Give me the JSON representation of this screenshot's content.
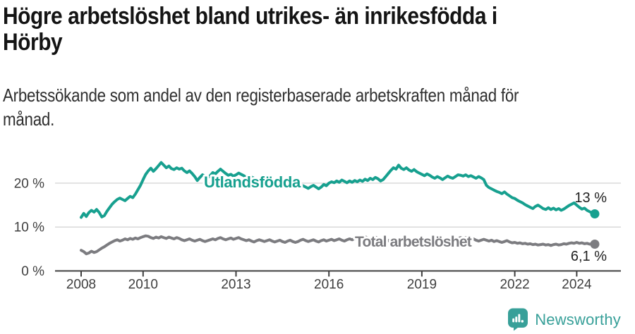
{
  "header": {
    "title": "Högre arbetslöshet bland utrikes- än inrikesfödda i\nHörby",
    "subtitle": "Arbetssökande som andel av den registerbaserade arbetskraften månad för\nmånad."
  },
  "colors": {
    "accent_teal": "#17a08f",
    "line_gray": "#7c7c80",
    "grid": "#d9d9d9",
    "axis": "#3f3f3f",
    "annotation_text": "#1f1f1f",
    "brand_teal": "#38a099"
  },
  "chart_data": {
    "type": "line",
    "x_start": "2008-01",
    "x_end": "2024-08",
    "frequency": "monthly",
    "start_year": 2008,
    "x_tick_years": [
      2008,
      2010,
      2013,
      2016,
      2019,
      2022,
      2024
    ],
    "y_ticks": [
      {
        "value": 0,
        "label": "0 %"
      },
      {
        "value": 10,
        "label": "10 %"
      },
      {
        "value": 20,
        "label": "20 %"
      }
    ],
    "ylim": [
      0,
      26
    ],
    "grid": "horizontal",
    "legend_position": "inline-labels",
    "series": [
      {
        "name": "Utlandsfödda",
        "color": "#17a08f",
        "end_label": "13 %",
        "end_value": 13.0,
        "values": [
          12.2,
          13.1,
          12.4,
          13.3,
          13.8,
          13.4,
          14.0,
          13.3,
          12.3,
          12.6,
          13.6,
          14.4,
          15.2,
          15.8,
          16.3,
          16.6,
          16.3,
          16.0,
          16.5,
          17.0,
          16.7,
          17.5,
          18.5,
          19.5,
          20.8,
          22.0,
          22.8,
          23.4,
          22.7,
          23.3,
          24.0,
          24.7,
          24.1,
          23.5,
          23.9,
          23.3,
          23.1,
          23.5,
          23.2,
          23.4,
          22.8,
          22.4,
          22.8,
          22.2,
          21.5,
          20.6,
          21.3,
          21.9,
          21.6,
          21.2,
          21.7,
          22.4,
          22.1,
          22.7,
          23.2,
          22.7,
          22.2,
          21.8,
          22.0,
          21.6,
          21.9,
          22.3,
          22.0,
          21.7,
          21.3,
          21.0,
          21.4,
          21.1,
          20.7,
          20.4,
          20.8,
          20.5,
          20.2,
          20.6,
          20.3,
          19.9,
          19.6,
          20.0,
          19.7,
          19.4,
          19.8,
          19.5,
          19.2,
          19.6,
          19.3,
          19.0,
          19.4,
          19.1,
          18.8,
          19.2,
          19.5,
          19.1,
          18.7,
          19.1,
          19.7,
          19.4,
          20.0,
          20.3,
          20.1,
          20.5,
          20.2,
          20.7,
          20.4,
          20.1,
          20.5,
          20.2,
          20.6,
          20.3,
          20.7,
          20.4,
          20.9,
          20.6,
          21.1,
          20.8,
          21.3,
          21.0,
          20.5,
          20.8,
          21.5,
          22.2,
          22.9,
          23.5,
          23.2,
          24.1,
          23.4,
          23.1,
          23.5,
          23.0,
          22.7,
          23.1,
          22.6,
          22.3,
          22.0,
          21.7,
          22.1,
          21.8,
          21.4,
          21.1,
          21.5,
          21.2,
          20.8,
          21.2,
          21.6,
          21.3,
          21.1,
          21.5,
          21.9,
          21.8,
          21.6,
          21.9,
          21.5,
          21.7,
          21.4,
          21.1,
          21.5,
          21.2,
          20.8,
          19.5,
          19.0,
          18.7,
          18.4,
          18.1,
          17.9,
          17.6,
          18.0,
          17.5,
          17.1,
          16.7,
          16.5,
          16.1,
          15.8,
          15.5,
          15.1,
          14.8,
          14.5,
          14.2,
          14.7,
          15.0,
          14.6,
          14.2,
          14.0,
          14.4,
          14.0,
          14.3,
          13.9,
          14.2,
          13.8,
          14.1,
          14.5,
          14.9,
          15.2,
          15.5,
          15.0,
          14.5,
          14.1,
          14.3,
          13.8,
          13.5,
          13.2,
          13.0
        ]
      },
      {
        "name": "Total arbetslöshet",
        "color": "#7c7c80",
        "end_label": "6,1 %",
        "end_value": 6.1,
        "values": [
          4.7,
          4.4,
          3.9,
          4.1,
          4.5,
          4.2,
          4.4,
          4.8,
          5.2,
          5.5,
          5.9,
          6.3,
          6.6,
          6.9,
          7.1,
          6.8,
          7.0,
          7.3,
          7.1,
          7.4,
          7.2,
          7.5,
          7.3,
          7.6,
          7.8,
          8.0,
          7.9,
          7.6,
          7.4,
          7.7,
          7.5,
          7.8,
          7.6,
          7.4,
          7.7,
          7.5,
          7.3,
          7.6,
          7.4,
          7.1,
          6.9,
          7.1,
          7.3,
          7.0,
          6.8,
          7.0,
          7.2,
          6.9,
          6.7,
          6.9,
          7.1,
          7.3,
          7.1,
          7.4,
          7.6,
          7.3,
          7.1,
          7.3,
          7.5,
          7.2,
          7.4,
          7.6,
          7.3,
          7.1,
          6.9,
          7.1,
          6.8,
          6.6,
          6.9,
          7.1,
          6.9,
          6.7,
          6.9,
          7.1,
          6.8,
          6.6,
          6.8,
          7.0,
          6.7,
          6.5,
          6.8,
          7.0,
          6.7,
          6.5,
          6.7,
          7.0,
          7.2,
          6.9,
          6.7,
          6.9,
          7.1,
          6.8,
          6.6,
          6.9,
          7.1,
          6.8,
          7.0,
          7.2,
          6.9,
          7.1,
          7.3,
          7.0,
          6.8,
          7.1,
          7.3,
          7.1,
          7.4,
          7.2,
          7.4,
          7.6,
          7.8,
          7.5,
          7.3,
          7.5,
          7.7,
          7.4,
          7.2,
          7.4,
          7.1,
          6.9,
          7.1,
          7.3,
          7.0,
          6.8,
          7.0,
          7.2,
          6.9,
          6.7,
          6.9,
          7.1,
          6.8,
          6.6,
          6.8,
          7.0,
          7.2,
          6.9,
          6.7,
          6.9,
          7.1,
          6.8,
          7.0,
          7.2,
          6.9,
          6.7,
          6.9,
          7.1,
          7.4,
          7.6,
          7.4,
          7.6,
          7.3,
          7.1,
          7.3,
          7.0,
          6.8,
          7.0,
          7.2,
          7.0,
          6.8,
          7.0,
          6.7,
          6.9,
          6.7,
          6.5,
          6.7,
          6.9,
          6.6,
          6.4,
          6.5,
          6.3,
          6.4,
          6.2,
          6.3,
          6.1,
          6.2,
          6.0,
          6.1,
          5.9,
          6.0,
          6.1,
          5.9,
          6.0,
          5.8,
          6.0,
          6.1,
          5.9,
          6.0,
          6.2,
          6.1,
          6.3,
          6.4,
          6.3,
          6.5,
          6.3,
          6.4,
          6.2,
          6.3,
          6.1,
          6.2,
          6.1
        ]
      }
    ]
  },
  "footer": {
    "brand": "Newsworthy"
  }
}
